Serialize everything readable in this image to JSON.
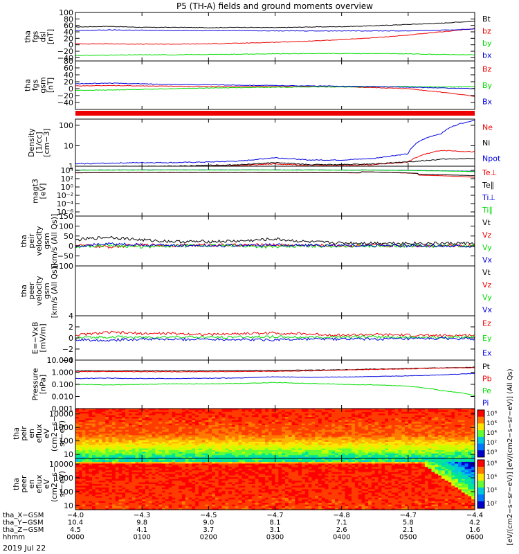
{
  "title": "P5 (TH-A) fields and ground moments overview",
  "date_label": "2019 Jul 22",
  "colors": {
    "black": "#000000",
    "red": "#ee0000",
    "green": "#00dd00",
    "blue": "#0000dd"
  },
  "chart_data": [
    {
      "type": "line",
      "id": "fgs_dsl",
      "ylabel": [
        "tha",
        "fgs",
        "dsl",
        "[nT]"
      ],
      "ylim": [
        -50,
        100
      ],
      "ytick_labels": [
        "100",
        "80",
        "60",
        "40",
        "20",
        "0",
        "−20",
        "−40"
      ],
      "ytick_values": [
        100,
        80,
        60,
        40,
        20,
        0,
        -20,
        -40
      ],
      "legend": [
        "Bt",
        "bz",
        "by",
        "bx"
      ],
      "legend_colors": [
        "#000000",
        "#ee0000",
        "#00dd00",
        "#0000dd"
      ],
      "x": [
        0,
        0.5,
        1,
        1.5,
        2,
        2.5,
        3,
        3.5,
        4,
        4.5,
        5,
        5.5,
        6
      ],
      "series": [
        {
          "name": "Bt",
          "color": "#000000",
          "values": [
            55,
            57,
            54,
            54,
            53,
            54,
            53,
            55,
            56,
            59,
            63,
            67,
            73
          ]
        },
        {
          "name": "bz",
          "color": "#ee0000",
          "values": [
            3,
            3,
            2,
            2,
            3,
            5,
            8,
            11,
            16,
            22,
            30,
            40,
            50
          ]
        },
        {
          "name": "by",
          "color": "#00dd00",
          "values": [
            -33,
            -32,
            -31,
            -31,
            -30,
            -29,
            -28,
            -27,
            -27,
            -27,
            -28,
            -30,
            -31
          ]
        },
        {
          "name": "bx",
          "color": "#0000dd",
          "values": [
            44,
            46,
            45,
            44,
            44,
            44,
            43,
            43,
            43,
            43,
            43,
            45,
            49
          ]
        }
      ]
    },
    {
      "type": "line",
      "id": "fgs_gsm",
      "ylabel": [
        "tha",
        "fgs",
        "gsm",
        "[nT]"
      ],
      "ylim": [
        -60,
        80
      ],
      "ytick_labels": [
        "80",
        "60",
        "40",
        "20",
        "0",
        "−20",
        "−40"
      ],
      "ytick_values": [
        80,
        60,
        40,
        20,
        0,
        -20,
        -40
      ],
      "legend": [
        "Bz",
        "By",
        "Bx"
      ],
      "legend_colors": [
        "#ee0000",
        "#00dd00",
        "#0000dd"
      ],
      "x": [
        0,
        0.5,
        1,
        1.5,
        2,
        2.5,
        3,
        3.5,
        4,
        4.5,
        5,
        5.5,
        6
      ],
      "series": [
        {
          "name": "Bz",
          "color": "#ee0000",
          "values": [
            8,
            9,
            8,
            7,
            6,
            6,
            6,
            6,
            5,
            3,
            0,
            -10,
            -22
          ]
        },
        {
          "name": "By",
          "color": "#00dd00",
          "values": [
            -5,
            -4,
            -2,
            0,
            2,
            3,
            4,
            5,
            5,
            5,
            6,
            5,
            6
          ]
        },
        {
          "name": "Bx",
          "color": "#0000dd",
          "values": [
            14,
            16,
            14,
            12,
            11,
            10,
            9,
            8,
            7,
            6,
            4,
            2,
            0
          ]
        }
      ]
    },
    {
      "type": "line",
      "id": "density",
      "scale": "log",
      "ylabel": [
        "Density",
        "[1/cc]",
        "[cm−3]"
      ],
      "ylim": [
        1,
        200
      ],
      "ytick_labels": [
        "100",
        "10",
        "1"
      ],
      "ytick_values": [
        100,
        10,
        1
      ],
      "legend": [
        "Ne",
        "Ni",
        "Npot"
      ],
      "legend_colors": [
        "#ee0000",
        "#000000",
        "#0000dd"
      ],
      "x": [
        0,
        0.5,
        1,
        1.5,
        2,
        2.5,
        3,
        3.5,
        4,
        4.5,
        5,
        5.5,
        6
      ],
      "series": [
        {
          "name": "Ne",
          "color": "#ee0000",
          "values": [
            0.8,
            0.85,
            0.9,
            0.9,
            1.0,
            1.1,
            1.3,
            1.1,
            1.1,
            1.2,
            1.6,
            6.0,
            5.0
          ]
        },
        {
          "name": "Ni",
          "color": "#000000",
          "values": [
            0.9,
            0.95,
            1.0,
            1.0,
            1.1,
            1.2,
            1.5,
            1.2,
            1.2,
            1.3,
            1.6,
            2.2,
            2.4
          ]
        },
        {
          "name": "Npot",
          "color": "#0000dd",
          "values": [
            1.3,
            1.4,
            1.5,
            1.5,
            1.6,
            1.8,
            2.6,
            2.0,
            2.0,
            2.4,
            4.0,
            40,
            180
          ]
        }
      ]
    },
    {
      "type": "line",
      "id": "temperature",
      "scale": "log",
      "ylabel": [
        "magt3",
        "[eV]"
      ],
      "ylim": [
        1e-07,
        100000.0
      ],
      "ytick_labels": [
        "10⁴",
        "10²",
        "10⁰",
        "10⁻²",
        "10⁻⁴",
        "10⁻⁶"
      ],
      "ytick_values": [
        10000,
        100,
        1,
        0.01,
        0.0001,
        1e-06
      ],
      "legend": [
        "Te⊥",
        "Te∥",
        "Ti⊥",
        "Ti∥"
      ],
      "legend_colors": [
        "#ee0000",
        "#000000",
        "#0000dd",
        "#00dd00"
      ],
      "x": [
        0,
        1,
        2,
        3,
        4,
        5,
        5.5,
        6
      ],
      "series": [
        {
          "name": "Te⊥",
          "color": "#ee0000",
          "values": [
            2500,
            3000,
            3000,
            2900,
            2600,
            2200,
            500,
            200
          ]
        },
        {
          "name": "Te∥",
          "color": "#000000",
          "values": [
            2700,
            3200,
            3200,
            3100,
            2800,
            2400,
            900,
            500
          ]
        },
        {
          "name": "Ti⊥",
          "color": "#0000dd",
          "values": [
            12000,
            13000,
            13000,
            13000,
            12000,
            10000,
            8000,
            6000
          ]
        },
        {
          "name": "Ti∥",
          "color": "#00dd00",
          "values": [
            11000,
            12000,
            12000,
            12000,
            11000,
            9000,
            7000,
            5000
          ]
        }
      ]
    },
    {
      "type": "line",
      "id": "peir_velocity",
      "ylabel": [
        "tha",
        "peir",
        "velocity",
        "gsm",
        "[km/s (All Qs)]"
      ],
      "ylim": [
        -100,
        150
      ],
      "ytick_labels": [
        "150",
        "100",
        "50",
        "0",
        "−50",
        "−100"
      ],
      "ytick_values": [
        150,
        100,
        50,
        0,
        -50,
        -100
      ],
      "legend": [
        "Vt",
        "Vz",
        "Vy",
        "Vx"
      ],
      "legend_colors": [
        "#000000",
        "#ee0000",
        "#00dd00",
        "#0000dd"
      ],
      "x": [
        0,
        0.5,
        1,
        1.5,
        2,
        2.5,
        3,
        3.5,
        4,
        4.5,
        5,
        5.5,
        6
      ],
      "series": [
        {
          "name": "Vt",
          "color": "#000000",
          "values": [
            30,
            45,
            30,
            22,
            22,
            25,
            35,
            20,
            15,
            15,
            14,
            13,
            14
          ]
        },
        {
          "name": "Vz",
          "color": "#ee0000",
          "values": [
            5,
            -5,
            5,
            3,
            5,
            4,
            5,
            3,
            2,
            2,
            2,
            2,
            2
          ]
        },
        {
          "name": "Vy",
          "color": "#00dd00",
          "values": [
            -5,
            5,
            -5,
            0,
            2,
            0,
            -5,
            0,
            0,
            0,
            0,
            0,
            0
          ]
        },
        {
          "name": "Vx",
          "color": "#0000dd",
          "values": [
            0,
            10,
            5,
            3,
            2,
            3,
            5,
            3,
            2,
            2,
            1,
            1,
            1
          ]
        }
      ]
    },
    {
      "type": "line",
      "id": "peer_velocity",
      "ylabel": [
        "tha",
        "peer",
        "velocity",
        "gsm",
        "[km/s (All Qs)]"
      ],
      "legend": [
        "Vt",
        "Vz",
        "Vy",
        "Vx"
      ],
      "legend_colors": [
        "#000000",
        "#ee0000",
        "#00dd00",
        "#0000dd"
      ],
      "series": []
    },
    {
      "type": "line",
      "id": "e_field",
      "ylabel": [
        "E=−VxB",
        "[mV/m]"
      ],
      "ylim": [
        -4,
        4
      ],
      "ytick_labels": [
        "4",
        "2",
        "0",
        "−2",
        "−4"
      ],
      "ytick_values": [
        4,
        2,
        0,
        -2,
        -4
      ],
      "legend": [
        "Ez",
        "Ey",
        "Ex"
      ],
      "legend_colors": [
        "#ee0000",
        "#00dd00",
        "#0000dd"
      ],
      "x": [
        0,
        0.5,
        1,
        1.5,
        2,
        2.5,
        3,
        3.5,
        4,
        4.5,
        5,
        5.5,
        6
      ],
      "series": [
        {
          "name": "Ez",
          "color": "#ee0000",
          "values": [
            0.5,
            1.0,
            0.8,
            0.8,
            0.6,
            0.8,
            0.9,
            0.7,
            0.5,
            0.6,
            0.5,
            0.4,
            0.5
          ]
        },
        {
          "name": "Ey",
          "color": "#00dd00",
          "values": [
            0,
            0.2,
            0.1,
            0.2,
            0.1,
            0.2,
            0.2,
            0.1,
            0.2,
            0.2,
            0.1,
            0.1,
            0.2
          ]
        },
        {
          "name": "Ex",
          "color": "#0000dd",
          "values": [
            -0.3,
            -0.4,
            -0.2,
            -0.3,
            -0.2,
            -0.3,
            -0.3,
            -0.2,
            -0.2,
            -0.2,
            -0.2,
            -0.1,
            -0.2
          ]
        }
      ]
    },
    {
      "type": "line",
      "id": "pressure",
      "scale": "log",
      "ylabel": [
        "Pressure",
        "[nPa]"
      ],
      "ylim": [
        0.001,
        10
      ],
      "ytick_labels": [
        "10.000",
        "1.000",
        "0.100",
        "0.010",
        "0.001"
      ],
      "ytick_values": [
        10,
        1,
        0.1,
        0.01,
        0.001
      ],
      "legend": [
        "Pt",
        "Pb",
        "Pe",
        "Pi"
      ],
      "legend_colors": [
        "#000000",
        "#ee0000",
        "#00dd00",
        "#0000dd"
      ],
      "x": [
        0,
        0.5,
        1,
        1.5,
        2,
        2.5,
        3,
        3.5,
        4,
        4.5,
        5,
        5.5,
        6
      ],
      "series": [
        {
          "name": "Pt",
          "color": "#000000",
          "values": [
            1.3,
            1.3,
            1.3,
            1.3,
            1.3,
            1.35,
            1.4,
            1.5,
            1.6,
            1.8,
            2.0,
            2.3,
            2.6
          ]
        },
        {
          "name": "Pb",
          "color": "#ee0000",
          "values": [
            1.1,
            1.15,
            1.1,
            1.1,
            1.1,
            1.15,
            1.2,
            1.3,
            1.5,
            1.7,
            1.9,
            2.2,
            2.4
          ]
        },
        {
          "name": "Pe",
          "color": "#00dd00",
          "values": [
            0.1,
            0.09,
            0.1,
            0.11,
            0.11,
            0.12,
            0.14,
            0.12,
            0.1,
            0.09,
            0.07,
            0.03,
            0.012
          ]
        },
        {
          "name": "Pi",
          "color": "#0000dd",
          "values": [
            0.3,
            0.33,
            0.3,
            0.3,
            0.32,
            0.34,
            0.42,
            0.38,
            0.4,
            0.45,
            0.5,
            0.6,
            0.8
          ]
        }
      ]
    },
    {
      "type": "heatmap",
      "id": "peir_spectrogram",
      "ylabel": [
        "tha",
        "peir",
        "en",
        "eflux",
        "eV",
        "(cm2−s−",
        "sr−eV)"
      ],
      "ylim": [
        5,
        25000
      ],
      "ytick_labels": [
        "10000",
        "1000",
        "100",
        "10"
      ],
      "ytick_values": [
        10000,
        1000,
        100,
        10
      ]
    },
    {
      "type": "heatmap",
      "id": "peer_spectrogram",
      "ylabel": [
        "tha",
        "peer",
        "en",
        "eflux",
        "eV",
        "(cm2−s−",
        "sr−eV)"
      ],
      "ylim": [
        5,
        25000
      ],
      "ytick_labels": [
        "10000",
        "1000",
        "100",
        "10"
      ],
      "ytick_values": [
        10000,
        1000,
        100,
        10
      ]
    }
  ],
  "colorbar": {
    "label": "[eV/(cm2−s−sr−eV)]   [eV/(cm2−s−sr−eV)] (All Qs)",
    "top_ticks": [
      "10⁸",
      "10⁶",
      "10⁴",
      "10²",
      "10⁰"
    ],
    "bottom_ticks": [
      "10⁸",
      "10⁶",
      "10⁴",
      "10²"
    ]
  },
  "xaxis": {
    "rows": [
      {
        "label": "tha_X−GSM",
        "values": [
          "−4.0",
          "−4.3",
          "−4.5",
          "−4.7",
          "−4.8",
          "−4.7",
          "−4.4"
        ]
      },
      {
        "label": "tha_Y−GSM",
        "values": [
          "10.4",
          "9.8",
          "9.0",
          "8.1",
          "7.1",
          "5.8",
          "4.2"
        ]
      },
      {
        "label": "tha_Z−GSM",
        "values": [
          "4.5",
          "4.1",
          "3.7",
          "3.1",
          "2.6",
          "2.1",
          "1.6"
        ]
      },
      {
        "label": "hhmm",
        "values": [
          "0000",
          "0100",
          "0200",
          "0300",
          "0400",
          "0500",
          "0600"
        ]
      }
    ]
  }
}
